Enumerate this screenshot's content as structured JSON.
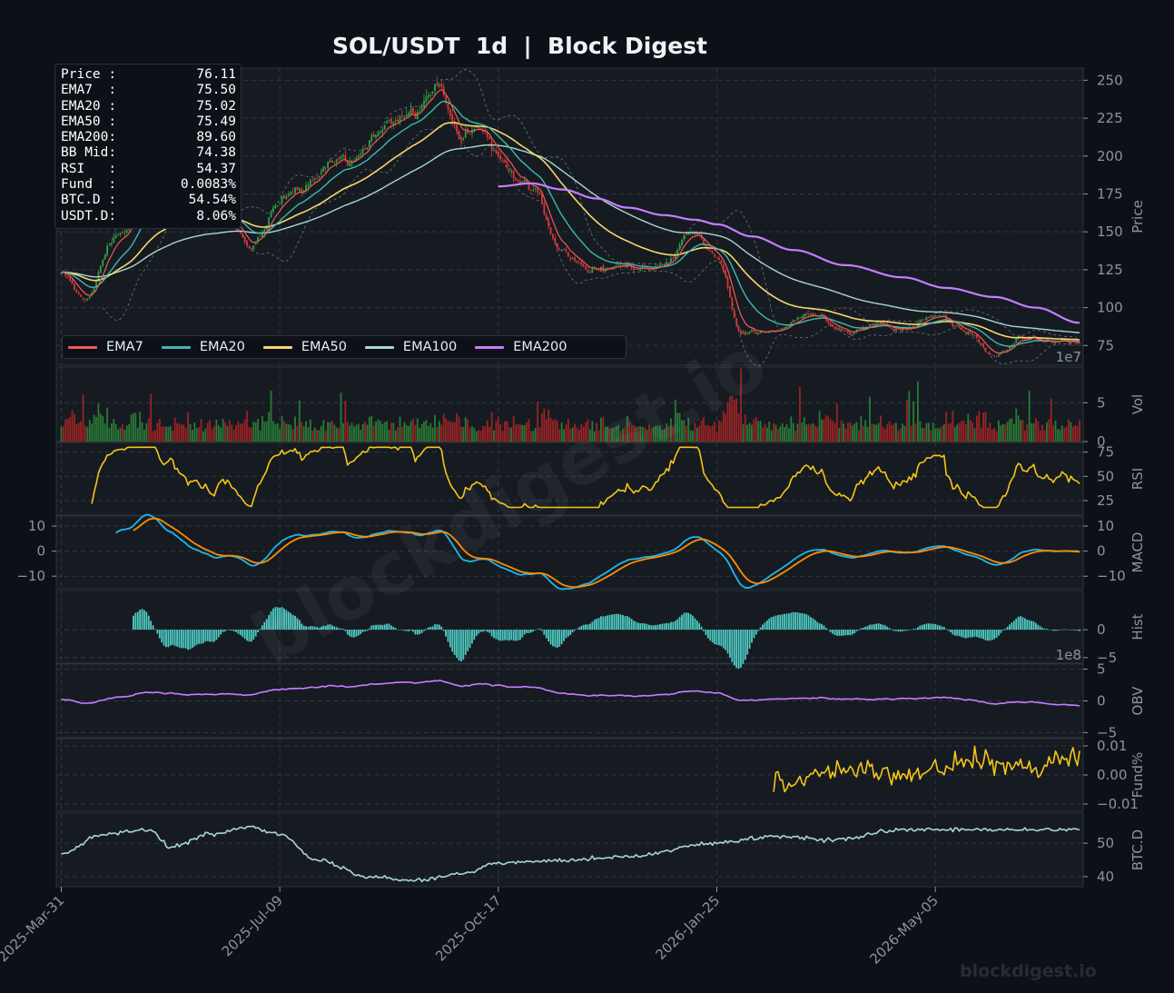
{
  "title": "SOL/USDT  1d  |  Block Digest",
  "watermark": "blockdigest.io",
  "footer": "blockdigest.io",
  "info_box": [
    {
      "label": "Price :",
      "value": "76.11"
    },
    {
      "label": "EMA7  :",
      "value": "75.50"
    },
    {
      "label": "EMA20 :",
      "value": "75.02"
    },
    {
      "label": "EMA50 :",
      "value": "75.49"
    },
    {
      "label": "EMA200:",
      "value": "89.60"
    },
    {
      "label": "BB Mid:",
      "value": "74.38"
    },
    {
      "label": "RSI   :",
      "value": "54.37"
    },
    {
      "label": "Fund  :",
      "value": "0.0083%"
    },
    {
      "label": "BTC.D :",
      "value": "54.54%"
    },
    {
      "label": "USDT.D:",
      "value": "8.06%"
    }
  ],
  "legend": [
    {
      "name": "EMA7",
      "color": "#f05a5a"
    },
    {
      "name": "EMA20",
      "color": "#3fb8b0"
    },
    {
      "name": "EMA50",
      "color": "#f5d76e"
    },
    {
      "name": "EMA100",
      "color": "#a8d8d0"
    },
    {
      "name": "EMA200",
      "color": "#c77dff"
    }
  ],
  "colors": {
    "background": "#0d1117",
    "panel": "#161b22",
    "grid": "#30363d",
    "up": "#2ea043",
    "down": "#da3633",
    "macd": "#1fb7ea",
    "signal": "#ff8c00",
    "hist": "#4ecdc4",
    "rsi": "#f5c518",
    "obv": "#c77dff",
    "btcd": "#a8d8d0"
  },
  "chart_data": {
    "type": "line",
    "x_ticks": [
      "2025-Mar-31",
      "2025-Jul-09",
      "2025-Oct-17",
      "2026-Jan-25",
      "2026-May-05"
    ],
    "price_anchors": {
      "dates": [
        "2025-Mar-31",
        "2025-Apr-10",
        "2025-Apr-25",
        "2025-May-10",
        "2025-May-25",
        "2025-Jun-10",
        "2025-Jun-25",
        "2025-Jul-09",
        "2025-Jul-25",
        "2025-Aug-10",
        "2025-Aug-25",
        "2025-Sep-10",
        "2025-Sep-18",
        "2025-Sep-30",
        "2025-Oct-10",
        "2025-Oct-17",
        "2025-Nov-01",
        "2025-Nov-15",
        "2025-Dec-01",
        "2025-Dec-15",
        "2026-Jan-01",
        "2026-Jan-15",
        "2026-Jan-25",
        "2026-Feb-05",
        "2026-Feb-20",
        "2026-Mar-10",
        "2026-Mar-25",
        "2026-Apr-10",
        "2026-Apr-25",
        "2026-May-05",
        "2026-May-20",
        "2026-Jun-01",
        "2026-Jun-15",
        "2026-Jul-01",
        "2026-Jul-10"
      ],
      "close": [
        125,
        105,
        145,
        175,
        172,
        160,
        145,
        165,
        185,
        200,
        215,
        235,
        250,
        215,
        225,
        200,
        180,
        135,
        125,
        125,
        128,
        145,
        130,
        85,
        85,
        92,
        85,
        88,
        86,
        97,
        85,
        68,
        80,
        76,
        76
      ]
    },
    "panels": [
      {
        "name": "Price",
        "ylabel": "Price",
        "yticks": [
          75,
          100,
          125,
          150,
          175,
          200,
          225,
          250
        ],
        "ylim": [
          62,
          258
        ],
        "offset_label": "1e7"
      },
      {
        "name": "Vol",
        "ylabel": "Vol",
        "yticks": [
          0,
          5
        ],
        "ylim": [
          0,
          9.6
        ]
      },
      {
        "name": "RSI",
        "ylabel": "RSI",
        "yticks": [
          25,
          50,
          75
        ],
        "ylim": [
          10,
          85
        ]
      },
      {
        "name": "MACD",
        "ylabel": "MACD",
        "yticks": [
          -10,
          0,
          10
        ],
        "ylim": [
          -15,
          14
        ]
      },
      {
        "name": "Hist",
        "ylabel": "Hist",
        "yticks": [
          -5,
          0
        ],
        "ylim": [
          -6,
          7
        ],
        "offset_label": "1e8"
      },
      {
        "name": "OBV",
        "ylabel": "OBV",
        "yticks": [
          -5,
          0,
          5
        ],
        "ylim": [
          -5.8,
          5.8
        ]
      },
      {
        "name": "Fund%",
        "ylabel": "Fund%",
        "yticks": [
          -0.01,
          0.0,
          0.01
        ],
        "ylim": [
          -0.0125,
          0.0125
        ]
      },
      {
        "name": "BTC.D",
        "ylabel": "BTC.D",
        "yticks": [
          40,
          50
        ],
        "ylim": [
          37,
          59
        ]
      }
    ],
    "ema200": {
      "dates": [
        "2025-Oct-17",
        "2025-Nov-01",
        "2025-Nov-15",
        "2025-Dec-01",
        "2025-Dec-15",
        "2026-Jan-01",
        "2026-Jan-15",
        "2026-Jan-25",
        "2026-Feb-10",
        "2026-Mar-01",
        "2026-Mar-25",
        "2026-Apr-20",
        "2026-May-10",
        "2026-Jun-01",
        "2026-Jun-20",
        "2026-Jul-10"
      ],
      "values": [
        180,
        182,
        178,
        172,
        166,
        161,
        158,
        155,
        147,
        138,
        128,
        120,
        113,
        107,
        100,
        90
      ]
    },
    "btc_dominance": {
      "dates": [
        "2025-Mar-31",
        "2025-Apr-20",
        "2025-May-10",
        "2025-May-20",
        "2025-Jun-10",
        "2025-Jun-25",
        "2025-Jul-09",
        "2025-Jul-25",
        "2025-Aug-20",
        "2025-Sep-10",
        "2025-Oct-01",
        "2025-Oct-17",
        "2025-Nov-15",
        "2025-Dec-15",
        "2026-Jan-25",
        "2026-Feb-20",
        "2026-Mar-20",
        "2026-Apr-20",
        "2026-May-20",
        "2026-Jul-10"
      ],
      "values": [
        47,
        53,
        54,
        49,
        53,
        55,
        53,
        45,
        40,
        39,
        41,
        44,
        45,
        46,
        50,
        52,
        51,
        54,
        54,
        54
      ]
    },
    "last_close": 76.11
  }
}
